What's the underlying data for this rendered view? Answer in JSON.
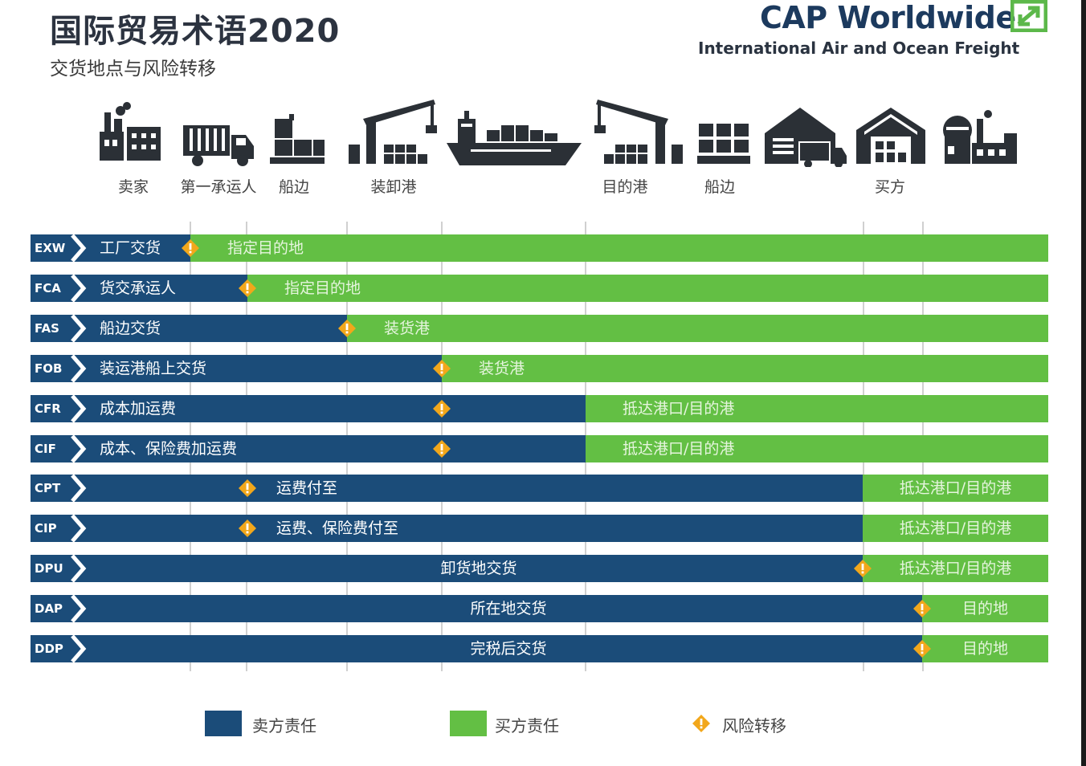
{
  "header": {
    "title": "国际贸易术语2020",
    "subtitle": "交货地点与风险转移"
  },
  "brand": {
    "name": "CAP Worldwide",
    "tagline": "International Air and Ocean Freight",
    "color": "#1c3a5e",
    "mark_color": "#5cb84a"
  },
  "stages": [
    {
      "label": "卖家",
      "icon": "factory-icon"
    },
    {
      "label": "第一承运人",
      "icon": "truck-icon"
    },
    {
      "label": "船边",
      "icon": "pallet-icon"
    },
    {
      "label": "装卸港",
      "icon": "port-crane-icon"
    },
    {
      "label": "",
      "icon": "container-ship-icon"
    },
    {
      "label": "目的港",
      "icon": "port-crane-icon"
    },
    {
      "label": "船边",
      "icon": "pallet-icon"
    },
    {
      "label": "",
      "icon": "warehouse-truck-icon"
    },
    {
      "label": "买方",
      "icon": "warehouse-icon"
    },
    {
      "label": "",
      "icon": "factory-icon"
    }
  ],
  "colors": {
    "seller": "#1b4c79",
    "buyer": "#63bf44",
    "risk": "#f2a71b"
  },
  "terms": [
    {
      "code": "EXW",
      "seller_label": "工厂交货",
      "buyer_label": "指定目的地",
      "cost_end": 0.157,
      "risk_point": 0.157
    },
    {
      "code": "FCA",
      "seller_label": "货交承运人",
      "buyer_label": "指定目的地",
      "cost_end": 0.213,
      "risk_point": 0.213
    },
    {
      "code": "FAS",
      "seller_label": "船边交货",
      "buyer_label": "装货港",
      "cost_end": 0.311,
      "risk_point": 0.311
    },
    {
      "code": "FOB",
      "seller_label": "装运港船上交货",
      "buyer_label": "装货港",
      "cost_end": 0.404,
      "risk_point": 0.404
    },
    {
      "code": "CFR",
      "seller_label": "成本加运费",
      "buyer_label": "抵达港口/目的港",
      "cost_end": 0.545,
      "risk_point": 0.404
    },
    {
      "code": "CIF",
      "seller_label": "成本、保险费加运费",
      "buyer_label": "抵达港口/目的港",
      "cost_end": 0.545,
      "risk_point": 0.404
    },
    {
      "code": "CPT",
      "seller_label": "运费付至",
      "buyer_label": "抵达港口/目的港",
      "cost_end": 0.818,
      "risk_point": 0.213
    },
    {
      "code": "CIP",
      "seller_label": "运费、保险费付至",
      "buyer_label": "抵达港口/目的港",
      "cost_end": 0.818,
      "risk_point": 0.213
    },
    {
      "code": "DPU",
      "seller_label": "卸货地交货",
      "buyer_label": "抵达港口/目的港",
      "cost_end": 0.818,
      "risk_point": 0.818
    },
    {
      "code": "DAP",
      "seller_label": "所在地交货",
      "buyer_label": "目的地",
      "cost_end": 0.876,
      "risk_point": 0.876
    },
    {
      "code": "DDP",
      "seller_label": "完税后交货",
      "buyer_label": "目的地",
      "cost_end": 0.876,
      "risk_point": 0.876
    }
  ],
  "legend": {
    "seller": "卖方责任",
    "buyer": "买方责任",
    "risk": "风险转移"
  }
}
